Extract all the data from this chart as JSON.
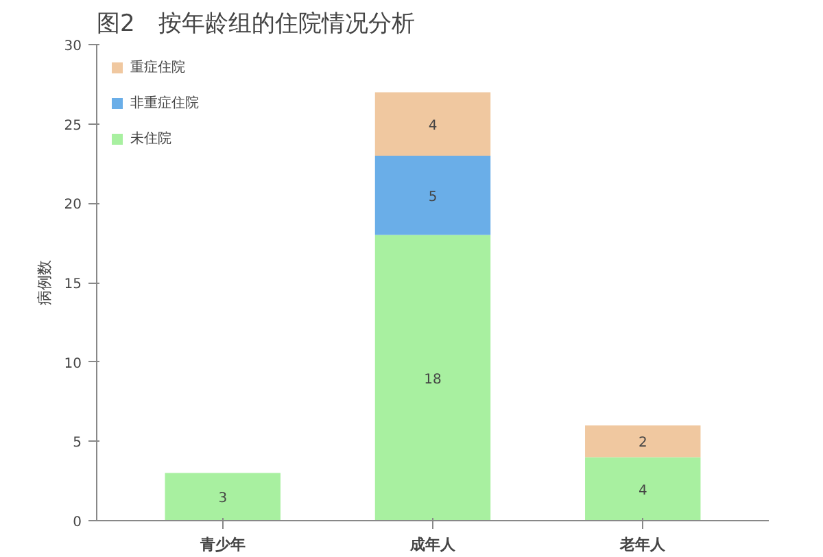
{
  "chart_data": {
    "type": "bar",
    "stacked": true,
    "title": "图2　按年龄组的住院情况分析",
    "ylabel": "病例数",
    "categories": [
      "青少年",
      "成年人",
      "老年人"
    ],
    "series": [
      {
        "name": "未住院",
        "color": "#a8f0a0",
        "values": [
          3,
          18,
          4
        ],
        "value_labels": [
          "3",
          "18",
          "4"
        ]
      },
      {
        "name": "非重症住院",
        "color": "#6aaee8",
        "values": [
          null,
          5,
          null
        ],
        "value_labels": [
          null,
          "5",
          null
        ]
      },
      {
        "name": "重症住院",
        "color": "#f0c8a0",
        "values": [
          null,
          4,
          2
        ],
        "value_labels": [
          null,
          "4",
          "2"
        ]
      }
    ],
    "ylim": [
      0,
      30
    ],
    "yticks": [
      0,
      5,
      10,
      15,
      20,
      25,
      30
    ],
    "grid": false,
    "legend": "top left"
  }
}
